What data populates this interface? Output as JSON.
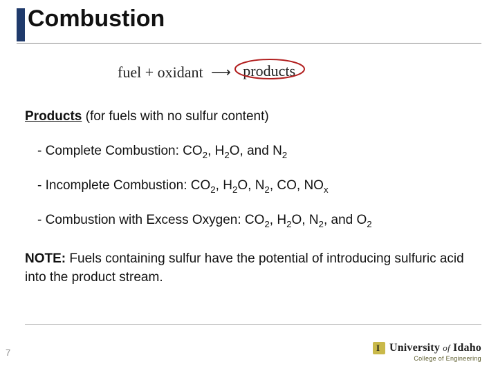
{
  "title": "Combustion",
  "equation": {
    "lhs1": "fuel",
    "plus": "+",
    "lhs2": "oxidant",
    "rhs": "products",
    "circle_stroke": "#b22020",
    "circle_stroke_width": 2
  },
  "section": {
    "heading_underlined": "Products",
    "heading_rest": " (for fuels with no sulfur content)"
  },
  "bullets": [
    {
      "prefix": "- Complete Combustion:  ",
      "items_html": "CO<sub>2</sub>, H<sub>2</sub>O, and N<sub>2</sub>"
    },
    {
      "prefix": "- Incomplete Combustion:  ",
      "items_html": "CO<sub>2</sub>, H<sub>2</sub>O, N<sub>2</sub>, CO, NO<sub>x</sub>"
    },
    {
      "prefix": "- Combustion with Excess Oxygen:  ",
      "items_html": "CO<sub>2</sub>, H<sub>2</sub>O, N<sub>2</sub>, and O<sub>2</sub>"
    }
  ],
  "note": {
    "label": "NOTE:  ",
    "text": "Fuels containing sulfur have the potential of introducing sulfuric acid into the product stream."
  },
  "page_number": "7",
  "logo": {
    "university": "University",
    "of": "of",
    "idaho": "Idaho",
    "college": "College of Engineering"
  },
  "colors": {
    "title_bar": "#1f3a6b",
    "text": "#111111",
    "underline": "#888888",
    "footer_line": "#bbbbbb",
    "logo_gold": "#c9b94a",
    "logo_sub": "#5a5a2a"
  }
}
